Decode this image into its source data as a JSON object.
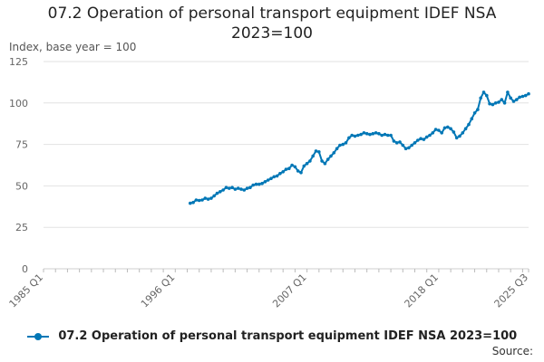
{
  "chart_data": {
    "type": "line",
    "title": "07.2 Operation of personal transport equipment IDEF NSA 2023=100",
    "title_lines": [
      "07.2 Operation of personal transport equipment IDEF NSA",
      "2023=100"
    ],
    "ylabel": "Index, base year = 100",
    "ylim": [
      0,
      125
    ],
    "yticks": [
      0,
      25,
      50,
      75,
      100,
      125
    ],
    "xlim": [
      1985.0,
      2025.5
    ],
    "xticks": [
      {
        "label": "1985 Q1",
        "value": 1985.0
      },
      {
        "label": "1996 Q1",
        "value": 1996.0
      },
      {
        "label": "2007 Q1",
        "value": 2007.0
      },
      {
        "label": "2018 Q1",
        "value": 2018.0
      },
      {
        "label": "2025 Q3",
        "value": 2025.5
      }
    ],
    "grid": true,
    "legend_position": "bottom",
    "series": [
      {
        "name": "07.2 Operation of personal transport equipment IDEF NSA 2023=100",
        "color": "#0077b6",
        "points": [
          [
            1997.25,
            39.5
          ],
          [
            1997.5,
            40.0
          ],
          [
            1997.75,
            41.5
          ],
          [
            1998.0,
            41.2
          ],
          [
            1998.25,
            41.5
          ],
          [
            1998.5,
            42.5
          ],
          [
            1998.75,
            42.0
          ],
          [
            1999.0,
            42.5
          ],
          [
            1999.25,
            44.0
          ],
          [
            1999.5,
            45.5
          ],
          [
            1999.75,
            46.5
          ],
          [
            2000.0,
            47.5
          ],
          [
            2000.25,
            49.0
          ],
          [
            2000.5,
            48.5
          ],
          [
            2000.75,
            49.0
          ],
          [
            2001.0,
            48.0
          ],
          [
            2001.25,
            48.5
          ],
          [
            2001.5,
            48.0
          ],
          [
            2001.75,
            47.5
          ],
          [
            2002.0,
            48.5
          ],
          [
            2002.25,
            49.0
          ],
          [
            2002.5,
            50.5
          ],
          [
            2002.75,
            51.0
          ],
          [
            2003.0,
            51.0
          ],
          [
            2003.25,
            51.5
          ],
          [
            2003.5,
            52.5
          ],
          [
            2003.75,
            53.5
          ],
          [
            2004.0,
            54.5
          ],
          [
            2004.25,
            55.5
          ],
          [
            2004.5,
            56.0
          ],
          [
            2004.75,
            57.5
          ],
          [
            2005.0,
            58.5
          ],
          [
            2005.25,
            60.0
          ],
          [
            2005.5,
            60.5
          ],
          [
            2005.75,
            62.5
          ],
          [
            2006.0,
            61.5
          ],
          [
            2006.25,
            59.0
          ],
          [
            2006.5,
            58.0
          ],
          [
            2006.75,
            62.0
          ],
          [
            2007.0,
            63.5
          ],
          [
            2007.25,
            65.0
          ],
          [
            2007.5,
            68.0
          ],
          [
            2007.75,
            71.0
          ],
          [
            2008.0,
            70.5
          ],
          [
            2008.25,
            65.0
          ],
          [
            2008.5,
            63.5
          ],
          [
            2008.75,
            66.0
          ],
          [
            2009.0,
            68.0
          ],
          [
            2009.25,
            70.0
          ],
          [
            2009.5,
            72.5
          ],
          [
            2009.75,
            74.5
          ],
          [
            2010.0,
            75.0
          ],
          [
            2010.25,
            76.0
          ],
          [
            2010.5,
            79.0
          ],
          [
            2010.75,
            80.5
          ],
          [
            2011.0,
            80.0
          ],
          [
            2011.25,
            80.5
          ],
          [
            2011.5,
            81.0
          ],
          [
            2011.75,
            82.0
          ],
          [
            2012.0,
            81.5
          ],
          [
            2012.25,
            81.0
          ],
          [
            2012.5,
            81.5
          ],
          [
            2012.75,
            82.0
          ],
          [
            2013.0,
            81.5
          ],
          [
            2013.25,
            80.5
          ],
          [
            2013.5,
            81.0
          ],
          [
            2013.75,
            80.5
          ],
          [
            2014.0,
            80.5
          ],
          [
            2014.25,
            77.0
          ],
          [
            2014.5,
            76.0
          ],
          [
            2014.75,
            76.5
          ],
          [
            2015.0,
            74.5
          ],
          [
            2015.25,
            72.5
          ],
          [
            2015.5,
            73.0
          ],
          [
            2015.75,
            74.5
          ],
          [
            2016.0,
            76.0
          ],
          [
            2016.25,
            77.5
          ],
          [
            2016.5,
            78.5
          ],
          [
            2016.75,
            78.0
          ],
          [
            2017.0,
            79.5
          ],
          [
            2017.25,
            80.5
          ],
          [
            2017.5,
            82.0
          ],
          [
            2017.75,
            84.0
          ],
          [
            2018.0,
            83.5
          ],
          [
            2018.25,
            82.0
          ],
          [
            2018.5,
            85.0
          ],
          [
            2018.75,
            85.5
          ],
          [
            2019.0,
            84.5
          ],
          [
            2019.25,
            82.5
          ],
          [
            2019.5,
            79.0
          ],
          [
            2019.75,
            80.0
          ],
          [
            2020.0,
            82.0
          ],
          [
            2020.25,
            84.5
          ],
          [
            2020.5,
            87.0
          ],
          [
            2020.75,
            90.5
          ],
          [
            2021.0,
            94.0
          ],
          [
            2021.25,
            96.0
          ],
          [
            2021.5,
            103.0
          ],
          [
            2021.75,
            106.5
          ],
          [
            2022.0,
            104.5
          ],
          [
            2022.25,
            99.5
          ],
          [
            2022.5,
            99.0
          ],
          [
            2022.75,
            100.0
          ],
          [
            2023.0,
            100.5
          ],
          [
            2023.25,
            102.0
          ],
          [
            2023.5,
            100.0
          ],
          [
            2023.75,
            106.5
          ],
          [
            2024.0,
            103.0
          ],
          [
            2024.25,
            101.0
          ],
          [
            2024.5,
            102.0
          ],
          [
            2024.75,
            103.5
          ],
          [
            2025.0,
            104.0
          ],
          [
            2025.25,
            104.5
          ],
          [
            2025.5,
            105.5
          ]
        ]
      }
    ],
    "source_label": "Source:"
  }
}
